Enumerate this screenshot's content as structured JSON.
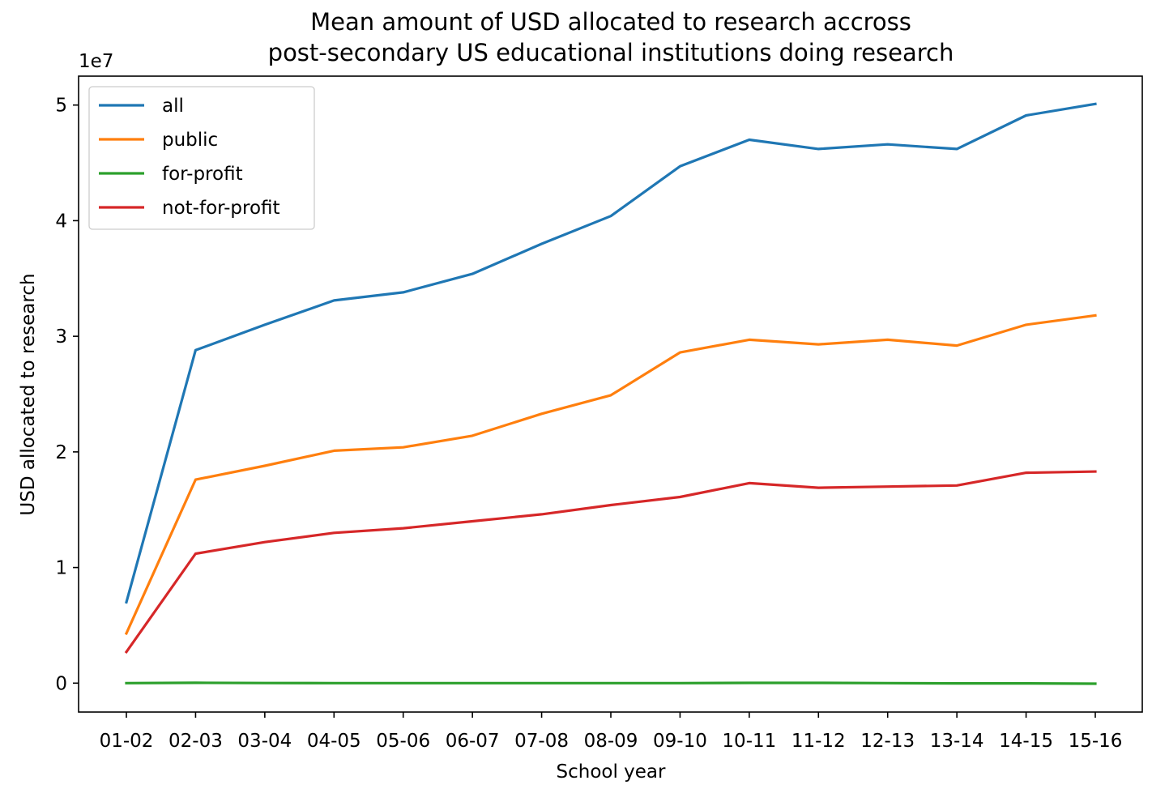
{
  "chart_data": {
    "type": "line",
    "title_lines": [
      "Mean amount of USD allocated to research accross",
      "post-secondary US educational institutions doing research"
    ],
    "xlabel": "School year",
    "ylabel": "USD allocated to research",
    "y_offset_label": "1e7",
    "categories": [
      "01-02",
      "02-03",
      "03-04",
      "04-05",
      "05-06",
      "06-07",
      "07-08",
      "08-09",
      "09-10",
      "10-11",
      "11-12",
      "12-13",
      "13-14",
      "14-15",
      "15-16"
    ],
    "y_ticks": [
      0,
      1,
      2,
      3,
      4,
      5
    ],
    "ylim": [
      -0.25,
      5.25
    ],
    "y_scale_factor": 10000000,
    "legend_position": "top-left",
    "grid": false,
    "series": [
      {
        "name": "all",
        "color": "#1f77b4",
        "values": [
          0.7,
          2.88,
          3.1,
          3.31,
          3.38,
          3.54,
          3.8,
          4.04,
          4.47,
          4.7,
          4.62,
          4.66,
          4.62,
          4.91,
          5.01
        ]
      },
      {
        "name": "public",
        "color": "#ff7f0e",
        "values": [
          0.43,
          1.76,
          1.88,
          2.01,
          2.04,
          2.14,
          2.33,
          2.49,
          2.86,
          2.97,
          2.93,
          2.97,
          2.92,
          3.1,
          3.18
        ]
      },
      {
        "name": "for-profit",
        "color": "#2ca02c",
        "values": [
          0.0,
          0.003,
          0.001,
          0.0,
          0.0,
          0.0,
          0.0,
          0.0,
          0.0,
          0.002,
          0.002,
          0.0,
          -0.002,
          -0.002,
          -0.005
        ]
      },
      {
        "name": "not-for-profit",
        "color": "#d62728",
        "values": [
          0.27,
          1.12,
          1.22,
          1.3,
          1.34,
          1.4,
          1.46,
          1.54,
          1.61,
          1.73,
          1.69,
          1.7,
          1.71,
          1.82,
          1.83
        ]
      }
    ]
  }
}
